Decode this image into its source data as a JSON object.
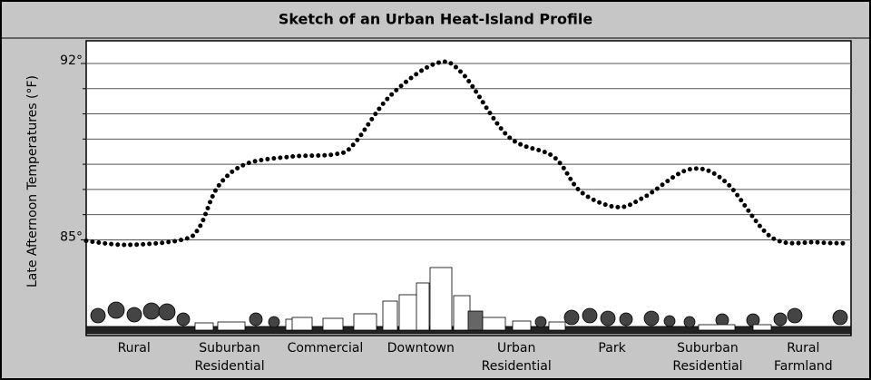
{
  "chart_data": {
    "type": "line",
    "title": "Sketch of an Urban Heat-Island Profile",
    "y_label": "Late Afternoon Temperatures (°F)",
    "categories": [
      [
        "Rural"
      ],
      [
        "Suburban",
        "Residential"
      ],
      [
        "Commercial"
      ],
      [
        "Downtown"
      ],
      [
        "Urban",
        "Residential"
      ],
      [
        "Park"
      ],
      [
        "Suburban",
        "Residential"
      ],
      [
        "Rural",
        "Farmland"
      ]
    ],
    "x": [
      0,
      5.3,
      12.5,
      14.8,
      17.2,
      20.8,
      26.7,
      32.6,
      35,
      39.7,
      45.7,
      49.2,
      55.2,
      61.1,
      64.7,
      69.4,
      73,
      78.9,
      83.6,
      89.6,
      95.5,
      99.6
    ],
    "values": [
      84.96,
      84.8,
      85.0,
      85.5,
      87.1,
      88.0,
      88.3,
      88.4,
      88.8,
      90.7,
      92.0,
      91.6,
      89.1,
      88.3,
      86.9,
      86.3,
      86.7,
      87.8,
      87.3,
      85.1,
      84.9,
      84.86
    ],
    "color": "#000000",
    "xlim": [
      0,
      100
    ],
    "ylim": [
      81.2,
      92.9
    ],
    "yticks": [
      {
        "value": 85,
        "label": "85°"
      },
      {
        "value": 92,
        "label": "92°"
      }
    ],
    "minor_yticks": [
      86,
      87,
      88,
      89,
      90,
      91
    ],
    "grid": true
  }
}
